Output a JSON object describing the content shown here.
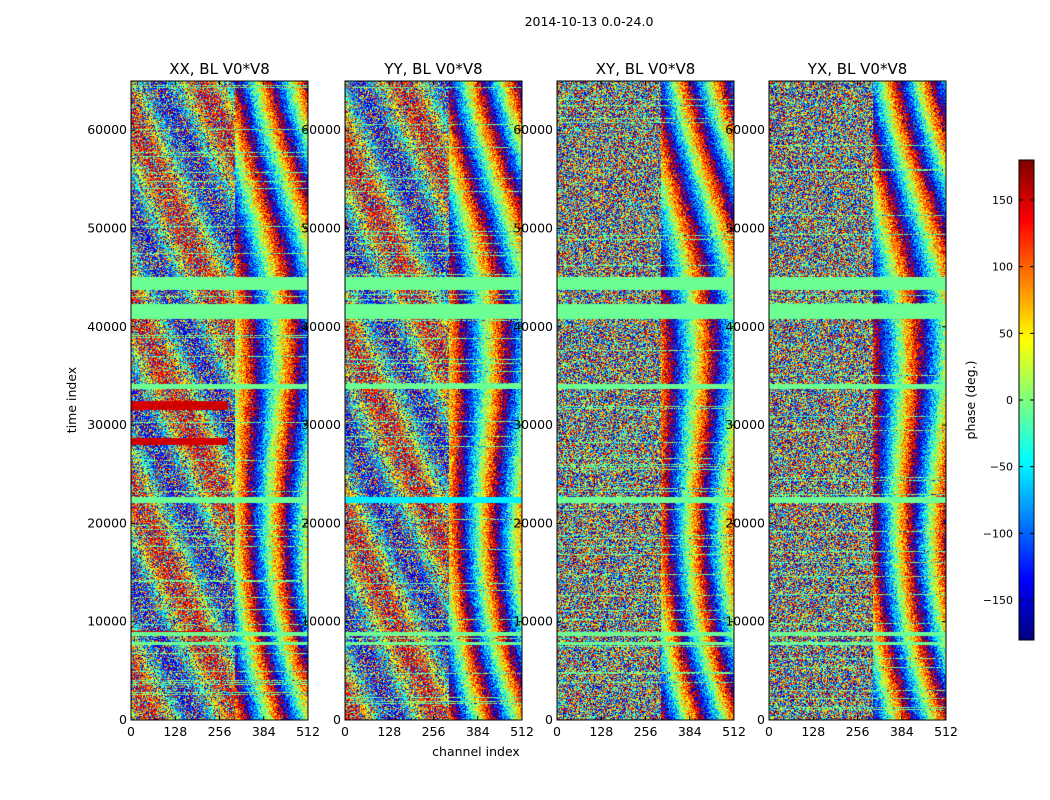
{
  "figure": {
    "suptitle": "2014-10-13 0.0-24.0"
  },
  "chart_data": {
    "type": "heatmap",
    "xlabel": "channel index",
    "ylabel": "time index",
    "x_ticks": [
      0,
      128,
      256,
      384,
      512
    ],
    "y_ticks": [
      0,
      10000,
      20000,
      30000,
      40000,
      50000,
      60000
    ],
    "xlim": [
      0,
      512
    ],
    "ylim": [
      0,
      65000
    ],
    "colormap": "jet",
    "panels": [
      {
        "title": "XX, BL V0*V8",
        "product": "XX",
        "variant": 0
      },
      {
        "title": "YY, BL V0*V8",
        "product": "YY",
        "variant": 1
      },
      {
        "title": "XY, BL V0*V8",
        "product": "XY",
        "variant": 2
      },
      {
        "title": "YX, BL V0*V8",
        "product": "YX",
        "variant": 3
      }
    ],
    "colorbar": {
      "label": "phase (deg.)",
      "vmin": -180,
      "vmax": 180,
      "ticks": [
        -150,
        -100,
        -50,
        0,
        50,
        100,
        150
      ]
    },
    "flagged_time_bands": [
      [
        43800,
        45100
      ],
      [
        40800,
        42300
      ],
      [
        33700,
        34200
      ],
      [
        22100,
        22700
      ],
      [
        8500,
        8900
      ],
      [
        7600,
        7900
      ]
    ]
  }
}
